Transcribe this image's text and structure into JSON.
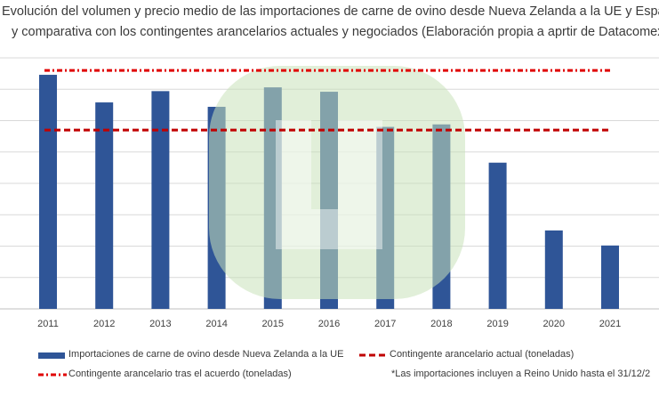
{
  "title": {
    "line1": "Evolución del volumen y precio medio de las importaciones de carne de ovino desde Nueva Zelanda a la UE y Espa",
    "line2": "y comparativa con los contingentes arancelarios actuales y negociados (Elaboración propia a aprtir de Datacomex"
  },
  "chart_data": {
    "type": "bar",
    "categories": [
      "2011",
      "2012",
      "2013",
      "2014",
      "2015",
      "2016",
      "2017",
      "2018",
      "2019",
      "2020",
      "2021"
    ],
    "series": [
      {
        "name": "Importaciones de carne de ovino desde Nueva Zelanda a la UE",
        "type": "bar",
        "color": "#2f5597",
        "values": [
          3.73,
          3.29,
          3.47,
          3.22,
          3.53,
          3.46,
          2.9,
          2.94,
          2.33,
          1.25,
          1.01
        ]
      },
      {
        "name": "Contingente arancelario actual (toneladas)",
        "type": "dashed-line",
        "color": "#c00000",
        "value": 2.85
      },
      {
        "name": "Contingente arancelario tras el acuerdo (toneladas)",
        "type": "dash-dot-line",
        "color": "#e00000",
        "value": 3.8
      }
    ],
    "ylim": [
      0,
      4
    ],
    "grid": true,
    "legend_position": "bottom"
  },
  "footnote": "*Las importaciones incluyen a Reino Unido hasta el 31/12/2",
  "watermark": "w-logo",
  "colors": {
    "bar": "#2f5597",
    "current_quota": "#c00000",
    "new_quota": "#e00000",
    "grid": "#d9d9d9",
    "watermark": "#c9e2b9"
  }
}
